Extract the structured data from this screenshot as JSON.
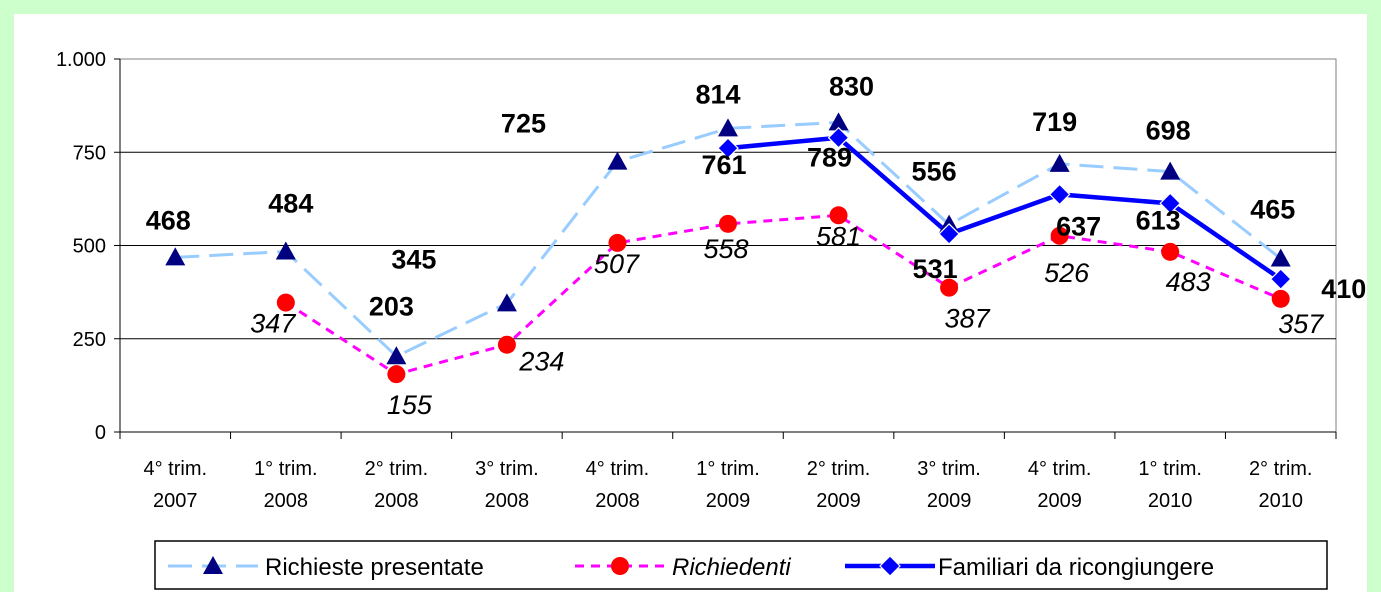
{
  "chart_data": {
    "type": "line",
    "categories": [
      [
        "4° trim.",
        "2007"
      ],
      [
        "1° trim.",
        "2008"
      ],
      [
        "2° trim.",
        "2008"
      ],
      [
        "3° trim.",
        "2008"
      ],
      [
        "4° trim.",
        "2008"
      ],
      [
        "1° trim.",
        "2009"
      ],
      [
        "2° trim.",
        "2009"
      ],
      [
        "3° trim.",
        "2009"
      ],
      [
        "4° trim.",
        "2009"
      ],
      [
        "1° trim.",
        "2010"
      ],
      [
        "2° trim.",
        "2010"
      ]
    ],
    "ylim": [
      0,
      1000
    ],
    "yticks": [
      0,
      250,
      500,
      750,
      1000
    ],
    "ytick_labels": [
      "0",
      "250",
      "500",
      "750",
      "1.000"
    ],
    "grid": true,
    "legend_position": "bottom",
    "series": [
      {
        "name": "Richieste presentate",
        "values": [
          468,
          484,
          203,
          345,
          725,
          814,
          830,
          556,
          719,
          698,
          465
        ],
        "labels": [
          "468",
          "484",
          "203",
          "345",
          "725",
          "814",
          "830",
          "556",
          "719",
          "698",
          "465"
        ],
        "color": "#99ccff",
        "marker_color": "#000080",
        "marker": "triangle",
        "dash": "dashed"
      },
      {
        "name": "Richiedenti",
        "values": [
          null,
          347,
          155,
          234,
          507,
          558,
          581,
          387,
          526,
          483,
          357
        ],
        "labels": [
          null,
          "347",
          "155",
          "234",
          "507",
          "558",
          "581",
          "387",
          "526",
          "483",
          "357"
        ],
        "color": "#ff00ff",
        "marker_color": "#ff0000",
        "marker": "circle",
        "dash": "dotted"
      },
      {
        "name": "Familiari da ricongiungere",
        "values": [
          null,
          null,
          null,
          null,
          null,
          761,
          789,
          531,
          637,
          613,
          410
        ],
        "labels": [
          null,
          null,
          null,
          null,
          null,
          "761",
          "789",
          "531",
          "637",
          "613",
          "410"
        ],
        "color": "#0000ff",
        "marker_color": "#0000ff",
        "marker": "diamond",
        "dash": "solid"
      }
    ]
  }
}
